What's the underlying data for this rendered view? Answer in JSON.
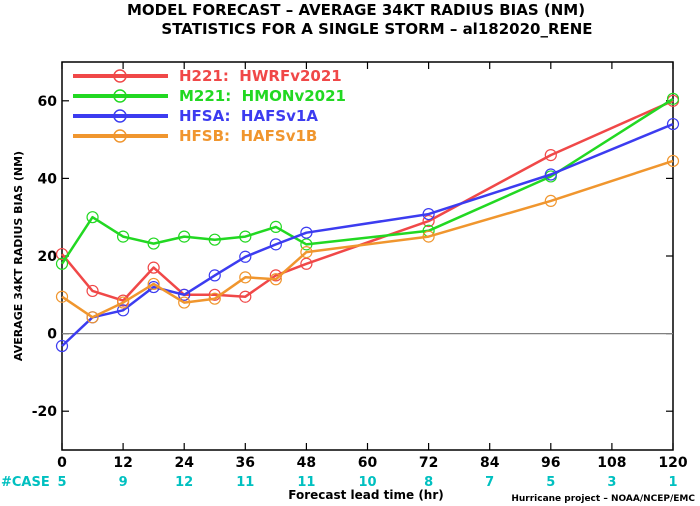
{
  "title_line1": "MODEL FORECAST – AVERAGE 34KT RADIUS BIAS (NM)",
  "title_line2": "STATISTICS FOR A SINGLE STORM – al182020_RENE",
  "credit": "Hurricane project – NOAA/NCEP/EMC",
  "cases_label": "#CASE",
  "colors": {
    "cases": "#00c0c0",
    "zero_line": "#808080"
  },
  "chart_data": {
    "type": "line",
    "ylabel": "AVERAGE 34KT RADIUS BIAS (NM)",
    "xlabel": "Forecast lead time (hr)",
    "xlim": [
      0,
      120
    ],
    "ylim": [
      -30,
      70
    ],
    "x_ticks": [
      0,
      12,
      24,
      36,
      48,
      60,
      72,
      84,
      96,
      108,
      120
    ],
    "y_ticks": [
      -20,
      0,
      20,
      40,
      60
    ],
    "legend_position": "top-left",
    "cases": [
      {
        "x": 0,
        "n": "5"
      },
      {
        "x": 12,
        "n": "9"
      },
      {
        "x": 24,
        "n": "12"
      },
      {
        "x": 36,
        "n": "11"
      },
      {
        "x": 48,
        "n": "11"
      },
      {
        "x": 60,
        "n": "10"
      },
      {
        "x": 72,
        "n": "8"
      },
      {
        "x": 84,
        "n": "7"
      },
      {
        "x": 96,
        "n": "5"
      },
      {
        "x": 108,
        "n": "3"
      },
      {
        "x": 120,
        "n": "1"
      }
    ],
    "series": [
      {
        "name": "H221:  HWRFv2021",
        "color": "#f04848",
        "x": [
          0,
          6,
          12,
          18,
          24,
          30,
          36,
          42,
          48,
          72,
          96,
          120
        ],
        "y": [
          20.5,
          11,
          8.5,
          17,
          10,
          10,
          9.5,
          15,
          18,
          29,
          46,
          60
        ]
      },
      {
        "name": "M221:  HMONv2021",
        "color": "#22d822",
        "x": [
          0,
          6,
          12,
          18,
          24,
          30,
          36,
          42,
          48,
          72,
          96,
          120
        ],
        "y": [
          18,
          30,
          25,
          23.2,
          25,
          24.2,
          25,
          27.5,
          23,
          26.5,
          40.5,
          60.5
        ]
      },
      {
        "name": "HFSA:  HAFSv1A",
        "color": "#3c3cf0",
        "x": [
          0,
          6,
          12,
          18,
          24,
          30,
          36,
          42,
          48,
          72,
          96,
          120
        ],
        "y": [
          -3.2,
          4.2,
          6,
          12,
          10,
          15,
          19.8,
          23,
          26,
          30.8,
          41,
          54
        ]
      },
      {
        "name": "HFSB:  HAFSv1B",
        "color": "#f0962e",
        "x": [
          0,
          6,
          12,
          18,
          24,
          30,
          36,
          42,
          48,
          72,
          96,
          120
        ],
        "y": [
          9.5,
          4.2,
          8,
          12.8,
          8,
          9,
          14.5,
          14,
          21,
          25,
          34.2,
          44.5
        ]
      }
    ]
  }
}
